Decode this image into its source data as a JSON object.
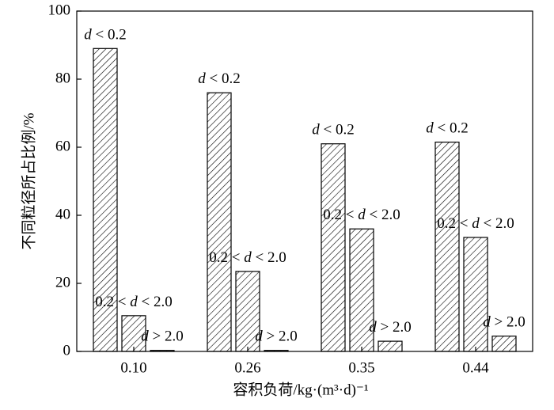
{
  "chart_data": {
    "type": "bar",
    "x_label": "容积负荷/kg·(m³·d)⁻¹",
    "y_label": "不同粒径所占比例/%",
    "categories": [
      "0.10",
      "0.26",
      "0.35",
      "0.44"
    ],
    "series": [
      {
        "name": "d < 0.2",
        "color": "#000000",
        "values": [
          89,
          76,
          61,
          61.5
        ]
      },
      {
        "name": "0.2 < d < 2.0",
        "color": "#000000",
        "values": [
          10.5,
          23.5,
          36,
          33.5
        ]
      },
      {
        "name": "d > 2.0",
        "color": "#000000",
        "values": [
          0.3,
          0.3,
          3,
          4.5
        ]
      }
    ],
    "ylim": [
      0,
      100
    ],
    "yticks": [
      0,
      20,
      40,
      60,
      80,
      100
    ],
    "grid": false
  }
}
